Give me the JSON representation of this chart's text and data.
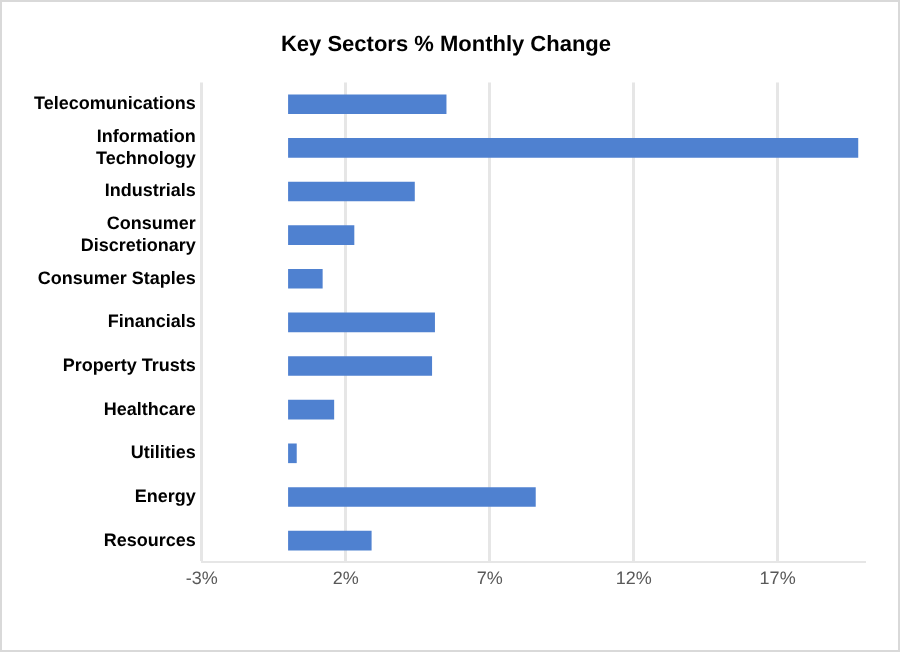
{
  "chart_data": {
    "type": "bar",
    "orientation": "horizontal",
    "title": "Key Sectors % Monthly Change",
    "categories": [
      "Telecomunications",
      "Information Technology",
      "Industrials",
      "Consumer Discretionary",
      "Consumer Staples",
      "Financials",
      "Property Trusts",
      "Healthcare",
      "Utilities",
      "Energy",
      "Resources"
    ],
    "values": [
      5.5,
      19.8,
      4.4,
      2.3,
      1.2,
      5.1,
      5.0,
      1.6,
      0.3,
      8.6,
      2.9
    ],
    "color": "#4f81d0",
    "xlim": [
      -3,
      20
    ],
    "xticks": [
      {
        "value": -3,
        "label": "-3%"
      },
      {
        "value": 2,
        "label": "2%"
      },
      {
        "value": 7,
        "label": "7%"
      },
      {
        "value": 12,
        "label": "12%"
      },
      {
        "value": 17,
        "label": "17%"
      }
    ],
    "grid": "x",
    "legend": false
  }
}
